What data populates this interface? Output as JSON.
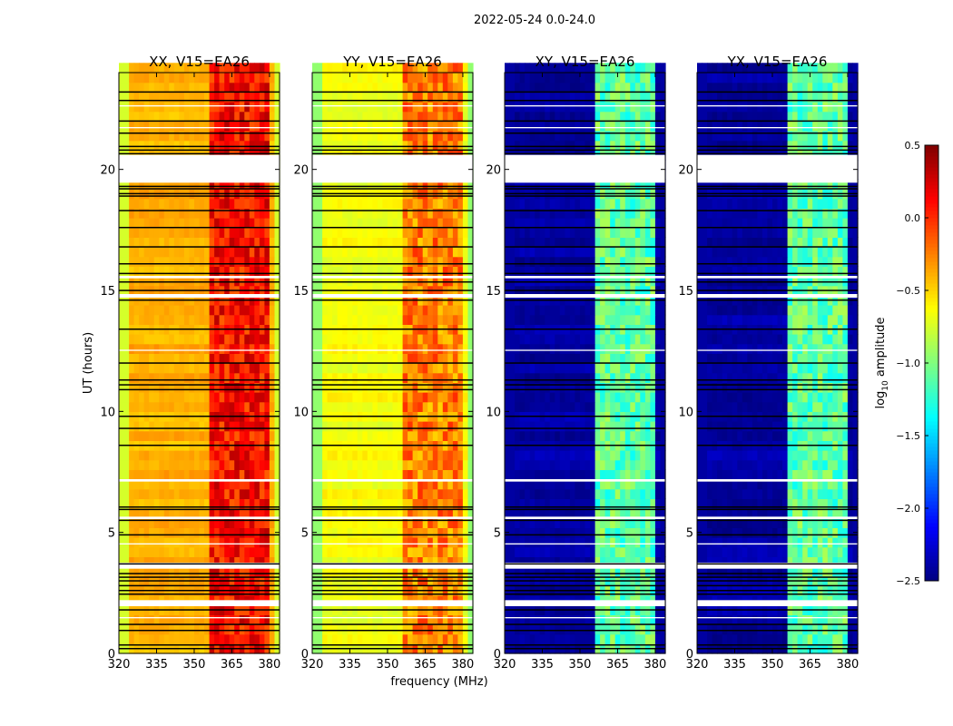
{
  "chart_data": {
    "type": "heatmap",
    "suptitle": "2022-05-24 0.0-24.0",
    "xlabel": "frequency (MHz)",
    "ylabel": "UT (hours)",
    "xlim": [
      320,
      384
    ],
    "ylim": [
      0,
      24
    ],
    "xticks": [
      "320",
      "335",
      "350",
      "365",
      "380"
    ],
    "xtick_values": [
      320,
      335,
      350,
      365,
      380
    ],
    "yticks": [
      "0",
      "5",
      "10",
      "15",
      "20"
    ],
    "ytick_values": [
      0,
      5,
      10,
      15,
      20
    ],
    "panels": [
      {
        "title": "XX, V15=EA26",
        "continuum": -0.4,
        "band": 0.1,
        "edge": -0.75
      },
      {
        "title": "YY, V15=EA26",
        "continuum": -0.65,
        "band": -0.25,
        "edge": -0.95
      },
      {
        "title": "XY, V15=EA26",
        "continuum": -2.4,
        "band": -1.1,
        "edge": -2.4
      },
      {
        "title": "YX, V15=EA26",
        "continuum": -2.4,
        "band": -1.1,
        "edge": -2.4
      }
    ],
    "band_columns_mhz": [
      [
        357,
        362
      ],
      [
        363,
        368
      ],
      [
        369,
        373.5
      ],
      [
        374.5,
        379
      ]
    ],
    "flagged_ut": [
      [
        19.45,
        20.6
      ],
      [
        3.5,
        3.75
      ],
      [
        1.95,
        2.2
      ],
      [
        14.7,
        14.85
      ],
      [
        15.5,
        15.6
      ],
      [
        7.1,
        7.2
      ],
      [
        5.55,
        5.65
      ],
      [
        4.5,
        4.55
      ],
      [
        1.45,
        1.5
      ],
      [
        12.5,
        12.55
      ],
      [
        21.7,
        21.75
      ],
      [
        22.6,
        22.65
      ]
    ],
    "dropout_ut": [
      0.2,
      0.35,
      0.95,
      1.2,
      1.8,
      2.45,
      2.6,
      2.8,
      3.0,
      3.15,
      3.3,
      3.7,
      4.9,
      5.5,
      5.95,
      6.05,
      8.6,
      9.3,
      9.8,
      10.9,
      11.1,
      11.3,
      12.0,
      13.4,
      14.6,
      15.0,
      15.35,
      15.7,
      16.1,
      16.8,
      17.6,
      18.3,
      18.9,
      19.0,
      19.2,
      19.3,
      20.65,
      20.8,
      20.95,
      21.5,
      22.0,
      22.85,
      23.2
    ],
    "colorbar": {
      "label": "log10 amplitude",
      "label_main": "log",
      "label_sub": "10",
      "label_rest": " amplitude",
      "min": -2.5,
      "max": 0.5,
      "ticks": [
        "0.5",
        "0.0",
        "−0.5",
        "−1.0",
        "−1.5",
        "−2.0",
        "−2.5"
      ],
      "tick_values": [
        0.5,
        0.0,
        -0.5,
        -1.0,
        -1.5,
        -2.0,
        -2.5
      ]
    }
  }
}
